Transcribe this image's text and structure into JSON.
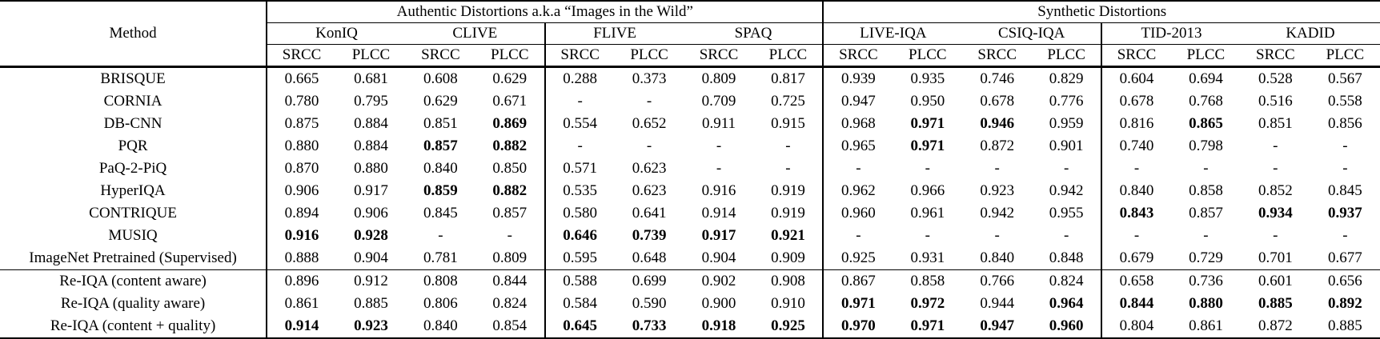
{
  "table": {
    "method_header": "Method",
    "group_headers": [
      {
        "label": "Authentic Distortions a.k.a “Images in the Wild”",
        "span": 8
      },
      {
        "label": "Synthetic Distortions",
        "span": 8
      }
    ],
    "datasets": [
      "KonIQ",
      "CLIVE",
      "FLIVE",
      "SPAQ",
      "LIVE-IQA",
      "CSIQ-IQA",
      "TID-2013",
      "KADID"
    ],
    "metric_headers": [
      "SRCC",
      "PLCC"
    ],
    "columns": [
      "KonIQ SRCC",
      "KonIQ PLCC",
      "CLIVE SRCC",
      "CLIVE PLCC",
      "FLIVE SRCC",
      "FLIVE PLCC",
      "SPAQ SRCC",
      "SPAQ PLCC",
      "LIVE-IQA SRCC",
      "LIVE-IQA PLCC",
      "CSIQ-IQA SRCC",
      "CSIQ-IQA PLCC",
      "TID-2013 SRCC",
      "TID-2013 PLCC",
      "KADID SRCC",
      "KADID PLCC"
    ],
    "rows": [
      {
        "method": "BRISQUE",
        "rule_above": false,
        "values": [
          "0.665",
          "0.681",
          "0.608",
          "0.629",
          "0.288",
          "0.373",
          "0.809",
          "0.817",
          "0.939",
          "0.935",
          "0.746",
          "0.829",
          "0.604",
          "0.694",
          "0.528",
          "0.567"
        ],
        "bold": []
      },
      {
        "method": "CORNIA",
        "rule_above": false,
        "values": [
          "0.780",
          "0.795",
          "0.629",
          "0.671",
          "-",
          "-",
          "0.709",
          "0.725",
          "0.947",
          "0.950",
          "0.678",
          "0.776",
          "0.678",
          "0.768",
          "0.516",
          "0.558"
        ],
        "bold": []
      },
      {
        "method": "DB-CNN",
        "rule_above": false,
        "values": [
          "0.875",
          "0.884",
          "0.851",
          "0.869",
          "0.554",
          "0.652",
          "0.911",
          "0.915",
          "0.968",
          "0.971",
          "0.946",
          "0.959",
          "0.816",
          "0.865",
          "0.851",
          "0.856"
        ],
        "bold": [
          3,
          9,
          10,
          13
        ]
      },
      {
        "method": "PQR",
        "rule_above": false,
        "values": [
          "0.880",
          "0.884",
          "0.857",
          "0.882",
          "-",
          "-",
          "-",
          "-",
          "0.965",
          "0.971",
          "0.872",
          "0.901",
          "0.740",
          "0.798",
          "-",
          "-"
        ],
        "bold": [
          2,
          3,
          9
        ]
      },
      {
        "method": "PaQ-2-PiQ",
        "rule_above": false,
        "values": [
          "0.870",
          "0.880",
          "0.840",
          "0.850",
          "0.571",
          "0.623",
          "-",
          "-",
          "-",
          "-",
          "-",
          "-",
          "-",
          "-",
          "-",
          "-"
        ],
        "bold": []
      },
      {
        "method": "HyperIQA",
        "rule_above": false,
        "values": [
          "0.906",
          "0.917",
          "0.859",
          "0.882",
          "0.535",
          "0.623",
          "0.916",
          "0.919",
          "0.962",
          "0.966",
          "0.923",
          "0.942",
          "0.840",
          "0.858",
          "0.852",
          "0.845"
        ],
        "bold": [
          2,
          3
        ]
      },
      {
        "method": "CONTRIQUE",
        "rule_above": false,
        "values": [
          "0.894",
          "0.906",
          "0.845",
          "0.857",
          "0.580",
          "0.641",
          "0.914",
          "0.919",
          "0.960",
          "0.961",
          "0.942",
          "0.955",
          "0.843",
          "0.857",
          "0.934",
          "0.937"
        ],
        "bold": [
          12,
          14,
          15
        ]
      },
      {
        "method": "MUSIQ",
        "rule_above": false,
        "values": [
          "0.916",
          "0.928",
          "-",
          "-",
          "0.646",
          "0.739",
          "0.917",
          "0.921",
          "-",
          "-",
          "-",
          "-",
          "-",
          "-",
          "-",
          "-"
        ],
        "bold": [
          0,
          1,
          4,
          5,
          6,
          7
        ]
      },
      {
        "method": "ImageNet Pretrained (Supervised)",
        "rule_above": false,
        "values": [
          "0.888",
          "0.904",
          "0.781",
          "0.809",
          "0.595",
          "0.648",
          "0.904",
          "0.909",
          "0.925",
          "0.931",
          "0.840",
          "0.848",
          "0.679",
          "0.729",
          "0.701",
          "0.677"
        ],
        "bold": []
      },
      {
        "method": "Re-IQA (content aware)",
        "rule_above": true,
        "values": [
          "0.896",
          "0.912",
          "0.808",
          "0.844",
          "0.588",
          "0.699",
          "0.902",
          "0.908",
          "0.867",
          "0.858",
          "0.766",
          "0.824",
          "0.658",
          "0.736",
          "0.601",
          "0.656"
        ],
        "bold": []
      },
      {
        "method": "Re-IQA (quality aware)",
        "rule_above": false,
        "values": [
          "0.861",
          "0.885",
          "0.806",
          "0.824",
          "0.584",
          "0.590",
          "0.900",
          "0.910",
          "0.971",
          "0.972",
          "0.944",
          "0.964",
          "0.844",
          "0.880",
          "0.885",
          "0.892"
        ],
        "bold": [
          8,
          9,
          11,
          12,
          13,
          14,
          15
        ]
      },
      {
        "method": "Re-IQA (content + quality)",
        "rule_above": false,
        "values": [
          "0.914",
          "0.923",
          "0.840",
          "0.854",
          "0.645",
          "0.733",
          "0.918",
          "0.925",
          "0.970",
          "0.971",
          "0.947",
          "0.960",
          "0.804",
          "0.861",
          "0.872",
          "0.885"
        ],
        "bold": [
          0,
          1,
          4,
          5,
          6,
          7,
          8,
          9,
          10,
          11
        ]
      }
    ]
  }
}
